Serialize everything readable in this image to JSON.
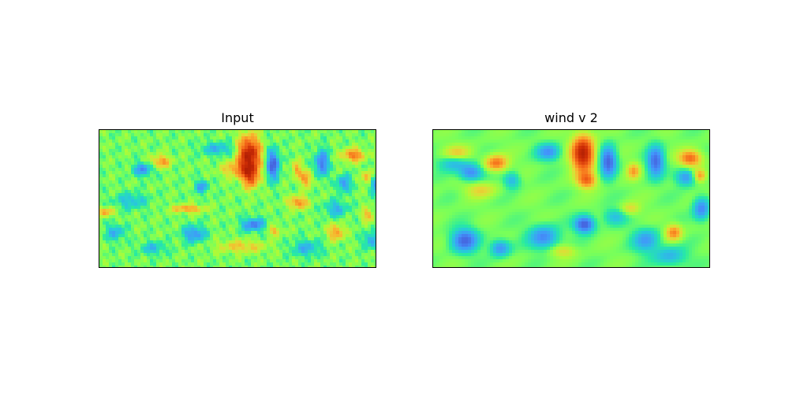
{
  "chart_data": [
    {
      "type": "heatmap",
      "title": "Input",
      "colormap": "turbo",
      "xticks": "off",
      "yticks": "off",
      "grid": false
    },
    {
      "type": "heatmap",
      "title": "wind v 2",
      "colormap": "turbo",
      "xticks": "off",
      "yticks": "off",
      "grid": false
    }
  ],
  "colors": {
    "background": "#ffffff",
    "frame": "#000000"
  }
}
